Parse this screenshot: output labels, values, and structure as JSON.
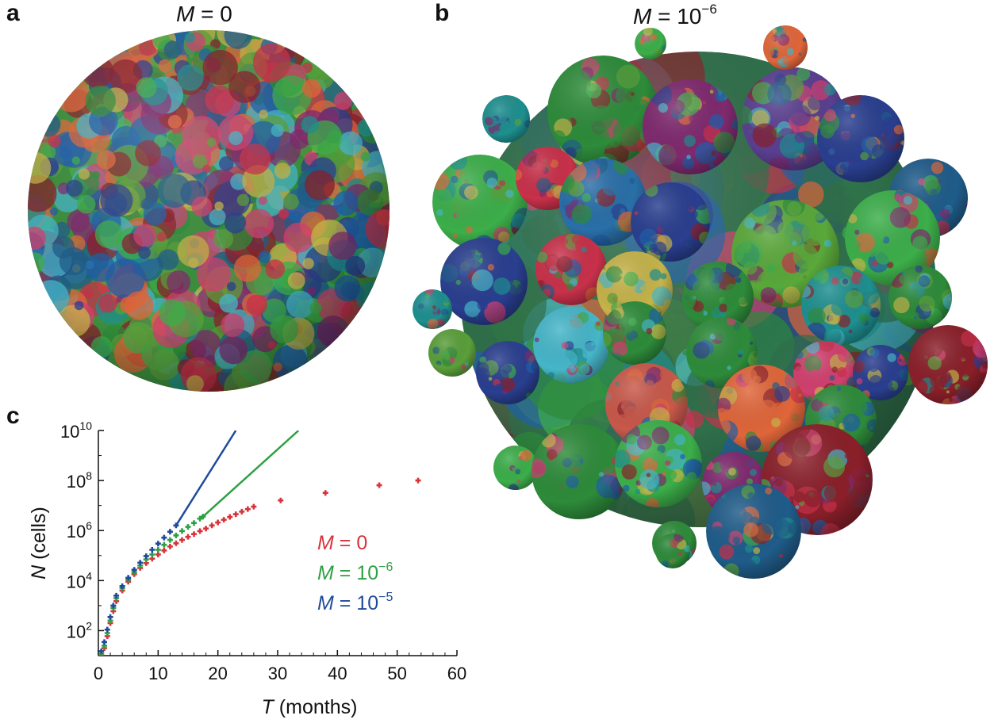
{
  "panel_a": {
    "letter": "a",
    "title_var": "M",
    "title_eq": " = 0"
  },
  "panel_b": {
    "letter": "b",
    "title_var": "M",
    "title_eq": " = 10",
    "title_exp": "−6"
  },
  "panel_c": {
    "letter": "c"
  },
  "palette": [
    "#2e8b3a",
    "#3cae4a",
    "#1f5fa8",
    "#2a3f8f",
    "#c8314a",
    "#d1406f",
    "#1e8f8f",
    "#46b6c9",
    "#c5b34a",
    "#8a1f2a",
    "#7f2a6e",
    "#e0663a",
    "#5a9f3a",
    "#205c8a"
  ],
  "chart_data": {
    "type": "scatter",
    "title": "",
    "xlabel_var": "T",
    "xlabel_rest": " (months)",
    "ylabel_var": "N",
    "ylabel_rest": " (cells)",
    "xlim": [
      0,
      60
    ],
    "ylog": true,
    "ylim_exp": [
      1,
      10
    ],
    "xticks": [
      0,
      10,
      20,
      30,
      40,
      50,
      60
    ],
    "yticks": [
      {
        "base": "10",
        "exp": "2"
      },
      {
        "base": "10",
        "exp": "4"
      },
      {
        "base": "10",
        "exp": "6"
      },
      {
        "base": "10",
        "exp": "8"
      },
      {
        "base": "10",
        "exp": "10"
      }
    ],
    "legend_placement": "right-middle",
    "series": [
      {
        "name_var": "M",
        "name_eq": " = 0",
        "name_exp": "",
        "color": "#d8333a",
        "points": [
          [
            0.5,
            10
          ],
          [
            1,
            20
          ],
          [
            1.5,
            60
          ],
          [
            2,
            200
          ],
          [
            2.5,
            600
          ],
          [
            3,
            1500
          ],
          [
            4,
            4000
          ],
          [
            5,
            9000
          ],
          [
            6,
            18000
          ],
          [
            7,
            32000
          ],
          [
            8,
            50000
          ],
          [
            9,
            75000
          ],
          [
            10,
            110000
          ],
          [
            11,
            160000
          ],
          [
            12,
            230000
          ],
          [
            13,
            310000
          ],
          [
            14,
            420000
          ],
          [
            15,
            560000
          ],
          [
            16,
            720000
          ],
          [
            17,
            950000
          ],
          [
            18,
            1200000
          ],
          [
            19,
            1600000
          ],
          [
            20,
            2100000
          ],
          [
            21,
            2700000
          ],
          [
            22,
            3500000
          ],
          [
            23,
            4500000
          ],
          [
            24,
            5700000
          ],
          [
            25,
            7200000
          ],
          [
            26,
            9000000
          ],
          [
            30.5,
            16000000
          ],
          [
            38,
            32000000
          ],
          [
            47,
            65000000
          ],
          [
            53.5,
            100000000
          ]
        ]
      },
      {
        "name_var": "M",
        "name_eq": " = 10",
        "name_exp": "−6",
        "color": "#2ea043",
        "points": [
          [
            0.5,
            12
          ],
          [
            1,
            25
          ],
          [
            1.5,
            80
          ],
          [
            2,
            250
          ],
          [
            2.5,
            800
          ],
          [
            3,
            2000
          ],
          [
            4,
            5000
          ],
          [
            5,
            11000
          ],
          [
            6,
            22000
          ],
          [
            7,
            40000
          ],
          [
            8,
            70000
          ],
          [
            9,
            110000
          ],
          [
            10,
            170000
          ],
          [
            11,
            270000
          ],
          [
            12,
            420000
          ],
          [
            13,
            640000
          ],
          [
            14,
            960000
          ],
          [
            15,
            1400000
          ],
          [
            16,
            2000000
          ],
          [
            17,
            3000000
          ],
          [
            17.5,
            3600000
          ]
        ],
        "fit_line": [
          [
            17.5,
            3600000
          ],
          [
            33.5,
            10000000000
          ]
        ]
      },
      {
        "name_var": "M",
        "name_eq": " = 10",
        "name_exp": "−5",
        "color": "#1f4a9a",
        "points": [
          [
            0.5,
            15
          ],
          [
            1,
            35
          ],
          [
            1.5,
            110
          ],
          [
            2,
            350
          ],
          [
            2.5,
            1000
          ],
          [
            3,
            2500
          ],
          [
            4,
            6000
          ],
          [
            5,
            13000
          ],
          [
            6,
            27000
          ],
          [
            7,
            52000
          ],
          [
            8,
            95000
          ],
          [
            9,
            170000
          ],
          [
            10,
            300000
          ],
          [
            11,
            520000
          ],
          [
            12,
            900000
          ],
          [
            13,
            1600000
          ]
        ],
        "fit_line": [
          [
            13,
            1600000
          ],
          [
            23,
            10000000000
          ]
        ]
      }
    ]
  }
}
